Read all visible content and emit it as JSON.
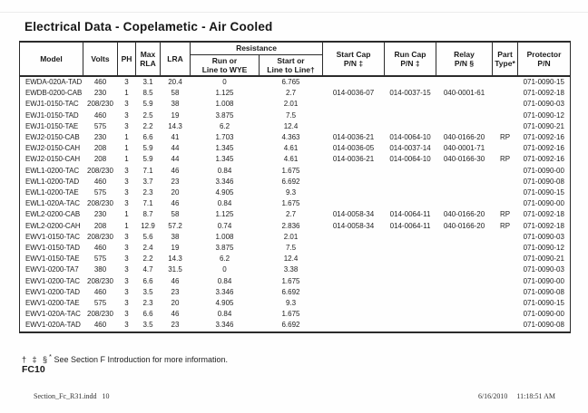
{
  "theme": {
    "ink": "#1c1c1c",
    "paper": "#fefefe",
    "border": "#2b2b2b"
  },
  "page": {
    "title": "Electrical Data - Copelametic - Air Cooled",
    "footnote_symbols": "† ‡ §",
    "footnote_star": "*",
    "footnote_text": " See Section F Introduction for more information.",
    "page_code": "FC10",
    "print_footer_left": "Section_Fc_R31.indd   10",
    "print_footer_date": "6/16/2010",
    "print_footer_time": "11:18:51 AM"
  },
  "table": {
    "headers": {
      "model": "Model",
      "volts": "Volts",
      "ph": "PH",
      "max_rla": "Max\nRLA",
      "lra": "LRA",
      "resistance_group": "Resistance",
      "run_resistance": "Run or\nLine to WYE",
      "start_resistance": "Start or\nLine to Line†",
      "start_cap": "Start Cap\nP/N ‡",
      "run_cap": "Run Cap\nP/N ‡",
      "relay": "Relay\nP/N §",
      "part_type": "Part\nType*",
      "protector": "Protector\nP/N"
    },
    "row_keys": [
      "model",
      "volts",
      "ph",
      "max_rla",
      "lra",
      "run_resistance",
      "start_resistance",
      "start_cap_pn",
      "run_cap_pn",
      "relay_pn",
      "part_type",
      "protector_pn"
    ],
    "rows": [
      [
        "EWDA-020A-TAD",
        "460",
        "3",
        "3.1",
        "20.4",
        "0",
        "6.765",
        "",
        "",
        "",
        "",
        "071-0090-15"
      ],
      [
        "EWDB-0200-CAB",
        "230",
        "1",
        "8.5",
        "58",
        "1.125",
        "2.7",
        "014-0036-07",
        "014-0037-15",
        "040-0001-61",
        "",
        "071-0092-18"
      ],
      [
        "EWJ1-0150-TAC",
        "208/230",
        "3",
        "5.9",
        "38",
        "1.008",
        "2.01",
        "",
        "",
        "",
        "",
        "071-0090-03"
      ],
      [
        "EWJ1-0150-TAD",
        "460",
        "3",
        "2.5",
        "19",
        "3.875",
        "7.5",
        "",
        "",
        "",
        "",
        "071-0090-12"
      ],
      [
        "EWJ1-0150-TAE",
        "575",
        "3",
        "2.2",
        "14.3",
        "6.2",
        "12.4",
        "",
        "",
        "",
        "",
        "071-0090-21"
      ],
      [
        "EWJ2-0150-CAB",
        "230",
        "1",
        "6.6",
        "41",
        "1.703",
        "4.363",
        "014-0036-21",
        "014-0064-10",
        "040-0166-20",
        "RP",
        "071-0092-16"
      ],
      [
        "EWJ2-0150-CAH",
        "208",
        "1",
        "5.9",
        "44",
        "1.345",
        "4.61",
        "014-0036-05",
        "014-0037-14",
        "040-0001-71",
        "",
        "071-0092-16"
      ],
      [
        "EWJ2-0150-CAH",
        "208",
        "1",
        "5.9",
        "44",
        "1.345",
        "4.61",
        "014-0036-21",
        "014-0064-10",
        "040-0166-30",
        "RP",
        "071-0092-16"
      ],
      [
        "EWL1-0200-TAC",
        "208/230",
        "3",
        "7.1",
        "46",
        "0.84",
        "1.675",
        "",
        "",
        "",
        "",
        "071-0090-00"
      ],
      [
        "EWL1-0200-TAD",
        "460",
        "3",
        "3.7",
        "23",
        "3.346",
        "6.692",
        "",
        "",
        "",
        "",
        "071-0090-08"
      ],
      [
        "EWL1-0200-TAE",
        "575",
        "3",
        "2.3",
        "20",
        "4.905",
        "9.3",
        "",
        "",
        "",
        "",
        "071-0090-15"
      ],
      [
        "EWL1-020A-TAC",
        "208/230",
        "3",
        "7.1",
        "46",
        "0.84",
        "1.675",
        "",
        "",
        "",
        "",
        "071-0090-00"
      ],
      [
        "EWL2-0200-CAB",
        "230",
        "1",
        "8.7",
        "58",
        "1.125",
        "2.7",
        "014-0058-34",
        "014-0064-11",
        "040-0166-20",
        "RP",
        "071-0092-18"
      ],
      [
        "EWL2-0200-CAH",
        "208",
        "1",
        "12.9",
        "57.2",
        "0.74",
        "2.836",
        "014-0058-34",
        "014-0064-11",
        "040-0166-20",
        "RP",
        "071-0092-18"
      ],
      [
        "EWV1-0150-TAC",
        "208/230",
        "3",
        "5.6",
        "38",
        "1.008",
        "2.01",
        "",
        "",
        "",
        "",
        "071-0090-03"
      ],
      [
        "EWV1-0150-TAD",
        "460",
        "3",
        "2.4",
        "19",
        "3.875",
        "7.5",
        "",
        "",
        "",
        "",
        "071-0090-12"
      ],
      [
        "EWV1-0150-TAE",
        "575",
        "3",
        "2.2",
        "14.3",
        "6.2",
        "12.4",
        "",
        "",
        "",
        "",
        "071-0090-21"
      ],
      [
        "EWV1-0200-TA7",
        "380",
        "3",
        "4.7",
        "31.5",
        "0",
        "3.38",
        "",
        "",
        "",
        "",
        "071-0090-03"
      ],
      [
        "EWV1-0200-TAC",
        "208/230",
        "3",
        "6.6",
        "46",
        "0.84",
        "1.675",
        "",
        "",
        "",
        "",
        "071-0090-00"
      ],
      [
        "EWV1-0200-TAD",
        "460",
        "3",
        "3.5",
        "23",
        "3.346",
        "6.692",
        "",
        "",
        "",
        "",
        "071-0090-08"
      ],
      [
        "EWV1-0200-TAE",
        "575",
        "3",
        "2.3",
        "20",
        "4.905",
        "9.3",
        "",
        "",
        "",
        "",
        "071-0090-15"
      ],
      [
        "EWV1-020A-TAC",
        "208/230",
        "3",
        "6.6",
        "46",
        "0.84",
        "1.675",
        "",
        "",
        "",
        "",
        "071-0090-00"
      ],
      [
        "EWV1-020A-TAD",
        "460",
        "3",
        "3.5",
        "23",
        "3.346",
        "6.692",
        "",
        "",
        "",
        "",
        "071-0090-08"
      ]
    ]
  }
}
